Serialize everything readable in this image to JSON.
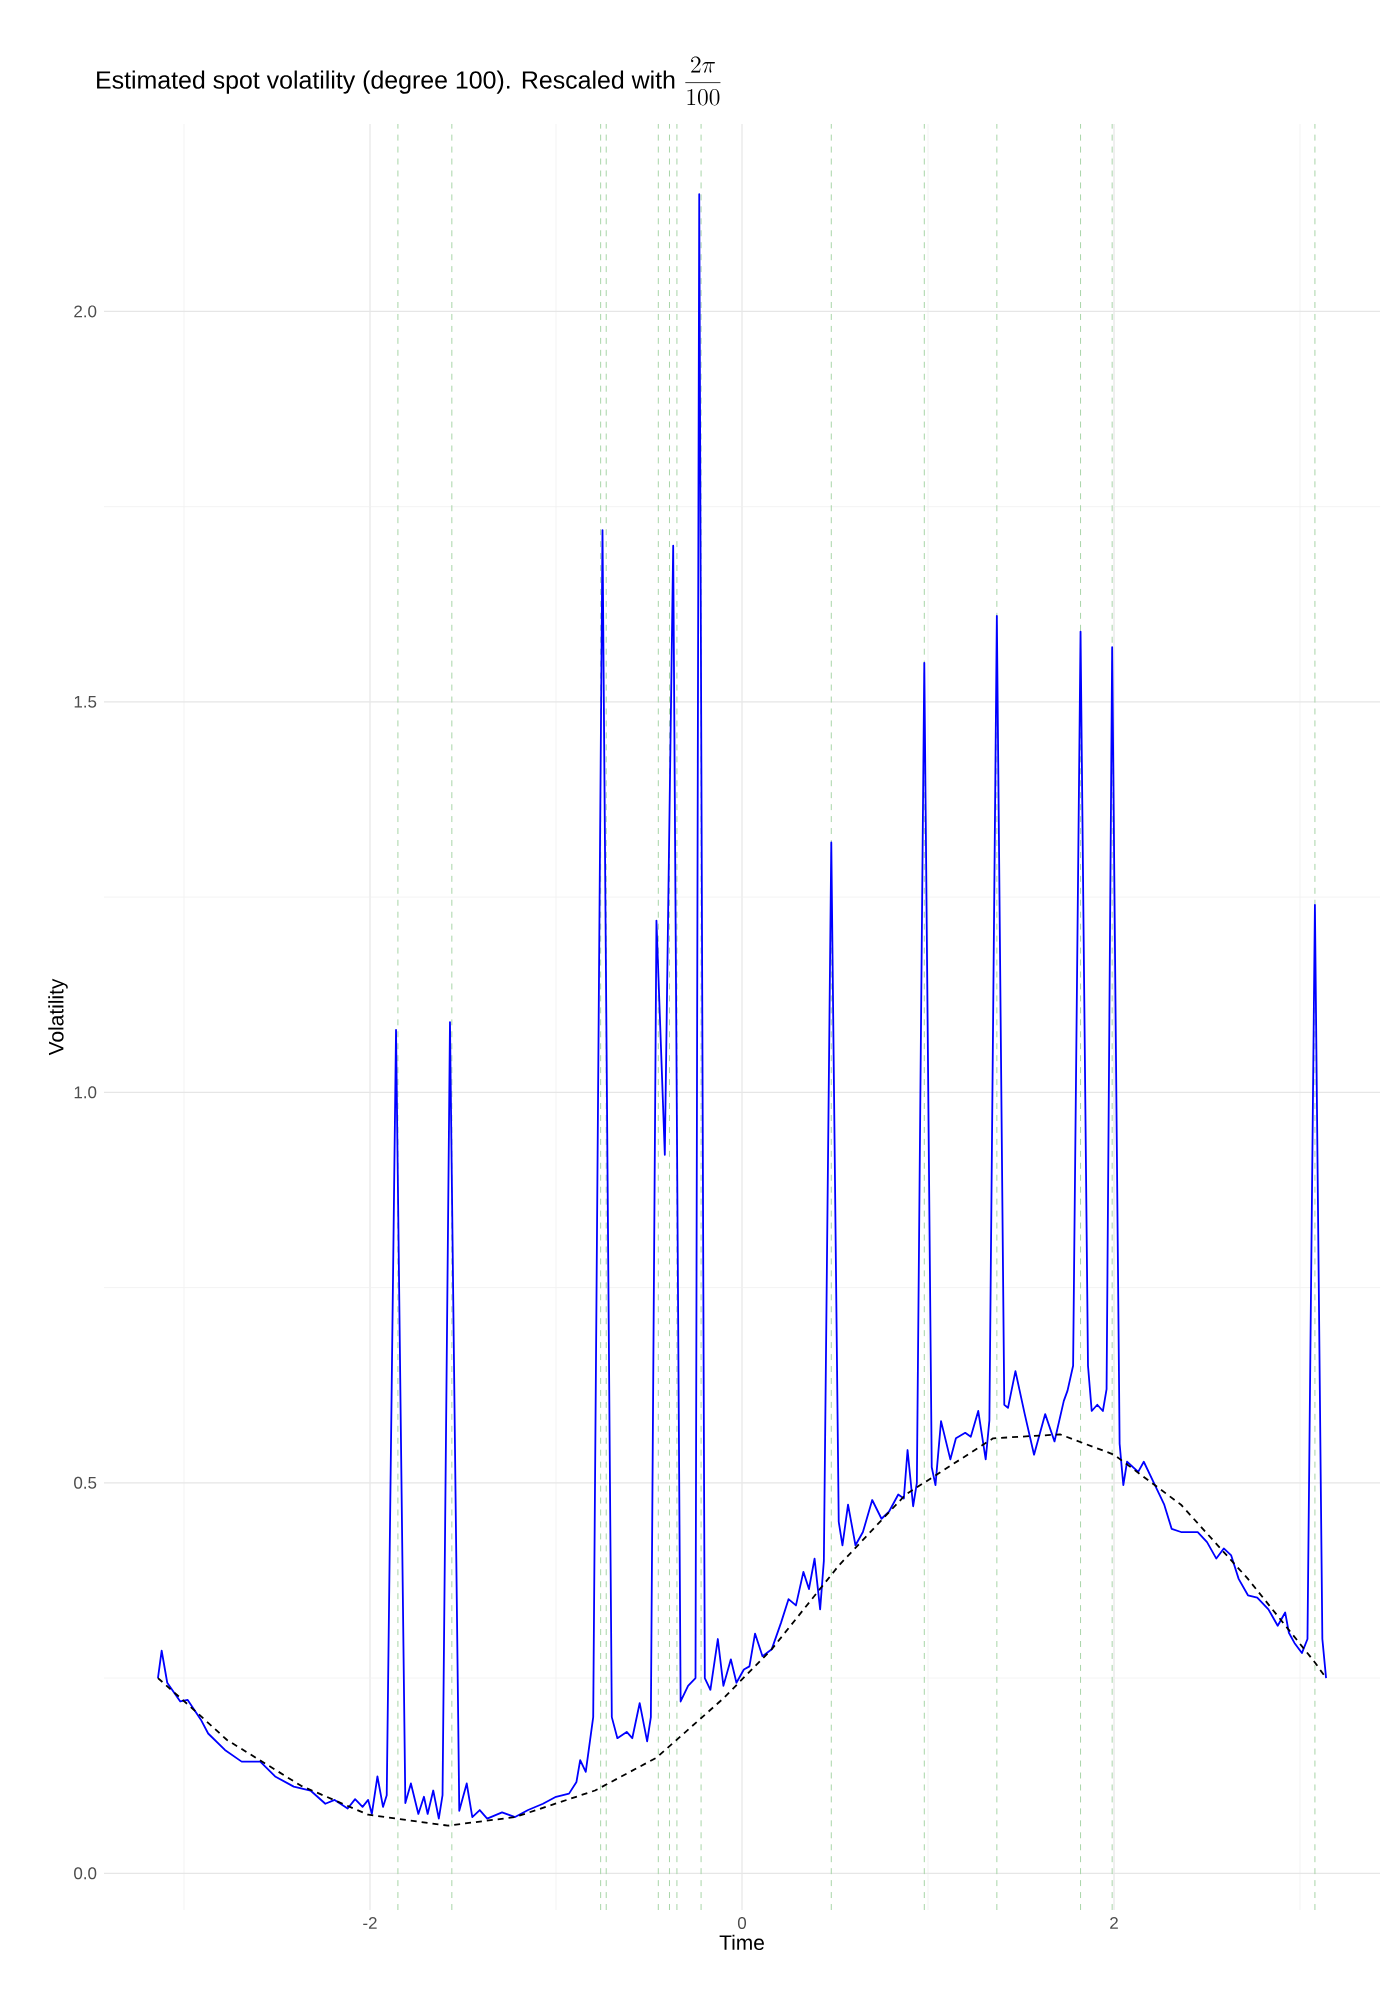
{
  "chart_data": {
    "type": "line",
    "title": "Estimated spot volatility (degree 100). Rescaled with",
    "annotations": [
      "\\frac{2\\pi}{100}"
    ],
    "xlabel": "Time",
    "ylabel": "Volatility",
    "xlim": [
      -3.43,
      3.43
    ],
    "ylim": [
      -0.047,
      2.24
    ],
    "xticks": [
      -2,
      0,
      2
    ],
    "yticks": [
      {
        "value": 0,
        "label": "0.0"
      },
      0.5,
      {
        "value": 1,
        "label": "1.0"
      },
      1.5,
      {
        "value": 2,
        "label": "2.0"
      }
    ],
    "grid": true,
    "ref_lines": [
      {
        "axis": "x",
        "value": -1.85,
        "color": "#a8d5a8",
        "line_style": "dashed"
      },
      {
        "axis": "x",
        "value": -1.56,
        "color": "#a8d5a8",
        "line_style": "dashed"
      },
      {
        "axis": "x",
        "value": -0.76,
        "color": "#a8d5a8",
        "line_style": "dashed"
      },
      {
        "axis": "x",
        "value": -0.73,
        "color": "#a8d5a8",
        "line_style": "dashed"
      },
      {
        "axis": "x",
        "value": -0.45,
        "color": "#a8d5a8",
        "line_style": "dashed"
      },
      {
        "axis": "x",
        "value": -0.39,
        "color": "#a8d5a8",
        "line_style": "dashed"
      },
      {
        "axis": "x",
        "value": -0.35,
        "color": "#a8d5a8",
        "line_style": "dashed"
      },
      {
        "axis": "x",
        "value": -0.22,
        "color": "#a8d5a8",
        "line_style": "dashed"
      },
      {
        "axis": "x",
        "value": 0.48,
        "color": "#a8d5a8",
        "line_style": "dashed"
      },
      {
        "axis": "x",
        "value": 0.98,
        "color": "#a8d5a8",
        "line_style": "dashed"
      },
      {
        "axis": "x",
        "value": 1.37,
        "color": "#a8d5a8",
        "line_style": "dashed"
      },
      {
        "axis": "x",
        "value": 1.82,
        "color": "#a8d5a8",
        "line_style": "dashed"
      },
      {
        "axis": "x",
        "value": 1.99,
        "color": "#a8d5a8",
        "line_style": "dashed"
      },
      {
        "axis": "x",
        "value": 3.08,
        "color": "#a8d5a8",
        "line_style": "dashed"
      }
    ],
    "series": [
      {
        "color": "#0000ff",
        "line_style": "solid",
        "x": [
          -3.14,
          -3.12,
          -3.09,
          -3.02,
          -2.98,
          -2.91,
          -2.87,
          -2.78,
          -2.69,
          -2.59,
          -2.51,
          -2.41,
          -2.32,
          -2.24,
          -2.19,
          -2.12,
          -2.08,
          -2.04,
          -2.01,
          -1.99,
          -1.96,
          -1.93,
          -1.91,
          -1.86,
          -1.81,
          -1.78,
          -1.74,
          -1.71,
          -1.69,
          -1.66,
          -1.63,
          -1.61,
          -1.57,
          -1.52,
          -1.48,
          -1.45,
          -1.41,
          -1.37,
          -1.29,
          -1.22,
          -1.15,
          -1.07,
          -1.0,
          -0.93,
          -0.89,
          -0.87,
          -0.84,
          -0.8,
          -0.75,
          -0.7,
          -0.67,
          -0.62,
          -0.59,
          -0.55,
          -0.51,
          -0.49,
          -0.46,
          -0.415,
          -0.37,
          -0.33,
          -0.29,
          -0.25,
          -0.23,
          -0.2,
          -0.17,
          -0.13,
          -0.1,
          -0.06,
          -0.03,
          0.01,
          0.04,
          0.07,
          0.11,
          0.16,
          0.21,
          0.25,
          0.29,
          0.33,
          0.36,
          0.39,
          0.42,
          0.44,
          0.48,
          0.52,
          0.54,
          0.57,
          0.61,
          0.65,
          0.7,
          0.75,
          0.79,
          0.84,
          0.87,
          0.89,
          0.92,
          0.94,
          0.98,
          1.02,
          1.04,
          1.07,
          1.12,
          1.15,
          1.2,
          1.23,
          1.27,
          1.31,
          1.33,
          1.37,
          1.41,
          1.43,
          1.47,
          1.52,
          1.57,
          1.63,
          1.68,
          1.73,
          1.75,
          1.78,
          1.82,
          1.86,
          1.88,
          1.91,
          1.94,
          1.96,
          1.99,
          2.03,
          2.05,
          2.07,
          2.13,
          2.16,
          2.22,
          2.27,
          2.31,
          2.36,
          2.45,
          2.5,
          2.55,
          2.59,
          2.63,
          2.67,
          2.72,
          2.77,
          2.83,
          2.88,
          2.92,
          2.94,
          2.97,
          3.01,
          3.04,
          3.08,
          3.12,
          3.14
        ],
        "values": [
          0.25,
          0.285,
          0.244,
          0.22,
          0.222,
          0.197,
          0.179,
          0.158,
          0.143,
          0.143,
          0.124,
          0.111,
          0.106,
          0.089,
          0.094,
          0.083,
          0.095,
          0.085,
          0.094,
          0.076,
          0.124,
          0.085,
          0.1,
          1.08,
          0.09,
          0.115,
          0.076,
          0.098,
          0.076,
          0.106,
          0.07,
          0.1,
          1.09,
          0.08,
          0.115,
          0.072,
          0.081,
          0.07,
          0.078,
          0.072,
          0.081,
          0.089,
          0.098,
          0.102,
          0.117,
          0.145,
          0.13,
          0.2,
          1.72,
          0.2,
          0.173,
          0.181,
          0.173,
          0.218,
          0.169,
          0.2,
          1.22,
          0.92,
          1.7,
          0.22,
          0.24,
          0.25,
          2.15,
          0.25,
          0.235,
          0.3,
          0.24,
          0.274,
          0.244,
          0.261,
          0.265,
          0.307,
          0.278,
          0.287,
          0.321,
          0.351,
          0.343,
          0.386,
          0.364,
          0.403,
          0.338,
          0.4,
          1.32,
          0.45,
          0.42,
          0.472,
          0.42,
          0.437,
          0.478,
          0.454,
          0.463,
          0.485,
          0.48,
          0.542,
          0.47,
          0.5,
          1.55,
          0.52,
          0.497,
          0.579,
          0.53,
          0.557,
          0.564,
          0.559,
          0.592,
          0.53,
          0.58,
          1.61,
          0.6,
          0.596,
          0.643,
          0.588,
          0.536,
          0.588,
          0.553,
          0.605,
          0.618,
          0.65,
          1.59,
          0.65,
          0.592,
          0.6,
          0.592,
          0.62,
          1.57,
          0.55,
          0.497,
          0.527,
          0.514,
          0.527,
          0.497,
          0.472,
          0.441,
          0.437,
          0.437,
          0.424,
          0.403,
          0.416,
          0.407,
          0.377,
          0.356,
          0.353,
          0.338,
          0.317,
          0.334,
          0.308,
          0.295,
          0.282,
          0.3,
          1.24,
          0.3,
          0.25
        ]
      },
      {
        "color": "#000000",
        "line_style": "dashed",
        "x": [
          -3.14,
          -2.95,
          -2.77,
          -2.37,
          -2.01,
          -1.58,
          -1.22,
          -0.79,
          -0.46,
          -0.1,
          0.16,
          0.52,
          0.88,
          1.35,
          1.71,
          2.0,
          2.36,
          2.72,
          3.08,
          3.14
        ],
        "values": [
          0.25,
          0.21,
          0.171,
          0.112,
          0.075,
          0.061,
          0.072,
          0.106,
          0.148,
          0.224,
          0.287,
          0.394,
          0.485,
          0.557,
          0.562,
          0.536,
          0.472,
          0.377,
          0.27,
          0.25
        ]
      }
    ]
  }
}
